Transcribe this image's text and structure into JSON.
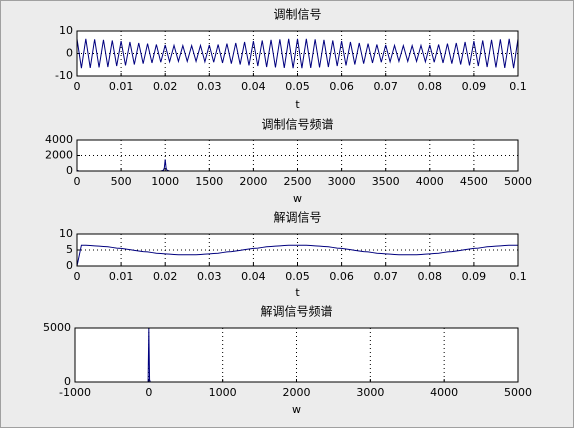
{
  "chart_data": [
    {
      "type": "line",
      "title": "调制信号",
      "xlabel": "t",
      "color": "#00007f",
      "grid": true,
      "xlim": [
        0,
        0.1
      ],
      "xticks": [
        0,
        0.01,
        0.02,
        0.03,
        0.04,
        0.05,
        0.06,
        0.07,
        0.08,
        0.09,
        0.1
      ],
      "ylim": [
        -10,
        10
      ],
      "yticks": [
        -10,
        0,
        10
      ],
      "x": [
        0,
        0.001,
        0.002,
        0.003,
        0.004,
        0.005,
        0.006,
        0.007,
        0.008,
        0.009,
        0.01,
        0.011,
        0.012,
        0.013,
        0.014,
        0.015,
        0.016,
        0.017,
        0.018,
        0.019,
        0.02,
        0.021,
        0.022,
        0.023,
        0.024,
        0.025,
        0.026,
        0.027,
        0.028,
        0.029,
        0.03,
        0.031,
        0.032,
        0.033,
        0.034,
        0.035,
        0.036,
        0.037,
        0.038,
        0.039,
        0.04,
        0.041,
        0.042,
        0.043,
        0.044,
        0.045,
        0.046,
        0.047,
        0.048,
        0.049,
        0.05,
        0.051,
        0.052,
        0.053,
        0.054,
        0.055,
        0.056,
        0.057,
        0.058,
        0.059,
        0.06,
        0.061,
        0.062,
        0.063,
        0.064,
        0.065,
        0.066,
        0.067,
        0.068,
        0.069,
        0.07,
        0.071,
        0.072,
        0.073,
        0.074,
        0.075,
        0.076,
        0.077,
        0.078,
        0.079,
        0.08,
        0.081,
        0.082,
        0.083,
        0.084,
        0.085,
        0.086,
        0.087,
        0.088,
        0.089,
        0.09,
        0.091,
        0.092,
        0.093,
        0.094,
        0.095,
        0.096,
        0.097,
        0.098,
        0.099,
        0.1
      ],
      "values": [
        6.5,
        -6.5,
        6.5,
        -6.4,
        6.3,
        -6.2,
        6.1,
        -6.0,
        5.8,
        -5.6,
        5.5,
        -5.3,
        5.1,
        -4.9,
        4.7,
        -4.5,
        4.4,
        -4.2,
        4.0,
        -3.9,
        3.8,
        -3.7,
        3.6,
        -3.5,
        3.5,
        -3.5,
        3.5,
        -3.5,
        3.6,
        -3.7,
        3.8,
        -3.9,
        4.0,
        -4.2,
        4.4,
        -4.5,
        4.7,
        -4.9,
        5.1,
        -5.3,
        5.5,
        -5.6,
        5.8,
        -6.0,
        6.1,
        -6.2,
        6.3,
        -6.4,
        6.5,
        -6.5,
        6.5,
        -6.5,
        6.5,
        -6.4,
        6.3,
        -6.2,
        6.1,
        -6.0,
        5.8,
        -5.6,
        5.5,
        -5.3,
        5.1,
        -4.9,
        4.7,
        -4.5,
        4.4,
        -4.2,
        4.0,
        -3.9,
        3.8,
        -3.7,
        3.6,
        -3.5,
        3.5,
        -3.5,
        3.5,
        -3.5,
        3.6,
        -3.7,
        3.8,
        -3.9,
        4.0,
        -4.2,
        4.4,
        -4.5,
        4.7,
        -4.9,
        5.1,
        -5.3,
        5.5,
        -5.6,
        5.8,
        -6.0,
        6.1,
        -6.2,
        6.3,
        -6.4,
        6.5,
        -6.5,
        6.5
      ]
    },
    {
      "type": "line",
      "title": "调制信号频谱",
      "xlabel": "w",
      "color": "#00007f",
      "grid": true,
      "xlim": [
        0,
        5000
      ],
      "xticks": [
        0,
        500,
        1000,
        1500,
        2000,
        2500,
        3000,
        3500,
        4000,
        4500,
        5000
      ],
      "ylim": [
        0,
        4000
      ],
      "yticks": [
        0,
        2000,
        4000
      ],
      "x": [
        0,
        10,
        20,
        950,
        980,
        990,
        1000,
        1010,
        1020,
        1050,
        5000
      ],
      "values": [
        20,
        60,
        0,
        0,
        100,
        400,
        1500,
        400,
        100,
        0,
        0
      ]
    },
    {
      "type": "line",
      "title": "解调信号",
      "xlabel": "t",
      "color": "#00007f",
      "grid": true,
      "xlim": [
        0,
        0.1
      ],
      "xticks": [
        0,
        0.01,
        0.02,
        0.03,
        0.04,
        0.05,
        0.06,
        0.07,
        0.08,
        0.09,
        0.1
      ],
      "ylim": [
        0,
        10
      ],
      "yticks": [
        0,
        5,
        10
      ],
      "x": [
        0,
        0.001,
        0.002,
        0.003,
        0.004,
        0.005,
        0.006,
        0.007,
        0.008,
        0.009,
        0.01,
        0.011,
        0.012,
        0.013,
        0.014,
        0.015,
        0.016,
        0.017,
        0.018,
        0.019,
        0.02,
        0.021,
        0.022,
        0.023,
        0.024,
        0.025,
        0.026,
        0.027,
        0.028,
        0.029,
        0.03,
        0.031,
        0.032,
        0.033,
        0.034,
        0.035,
        0.036,
        0.037,
        0.038,
        0.039,
        0.04,
        0.041,
        0.042,
        0.043,
        0.044,
        0.045,
        0.046,
        0.047,
        0.048,
        0.049,
        0.05,
        0.051,
        0.052,
        0.053,
        0.054,
        0.055,
        0.056,
        0.057,
        0.058,
        0.059,
        0.06,
        0.061,
        0.062,
        0.063,
        0.064,
        0.065,
        0.066,
        0.067,
        0.068,
        0.069,
        0.07,
        0.071,
        0.072,
        0.073,
        0.074,
        0.075,
        0.076,
        0.077,
        0.078,
        0.079,
        0.08,
        0.081,
        0.082,
        0.083,
        0.084,
        0.085,
        0.086,
        0.087,
        0.088,
        0.089,
        0.09,
        0.091,
        0.092,
        0.093,
        0.094,
        0.095,
        0.096,
        0.097,
        0.098,
        0.099,
        0.1
      ],
      "values": [
        0,
        6.5,
        6.5,
        6.4,
        6.3,
        6.2,
        6.1,
        6.0,
        5.8,
        5.6,
        5.5,
        5.3,
        5.1,
        4.9,
        4.7,
        4.5,
        4.4,
        4.2,
        4.0,
        3.9,
        3.8,
        3.7,
        3.6,
        3.5,
        3.5,
        3.5,
        3.5,
        3.5,
        3.6,
        3.7,
        3.8,
        3.9,
        4.0,
        4.2,
        4.4,
        4.5,
        4.7,
        4.9,
        5.1,
        5.3,
        5.5,
        5.6,
        5.8,
        6.0,
        6.1,
        6.2,
        6.3,
        6.4,
        6.5,
        6.5,
        6.5,
        6.5,
        6.5,
        6.4,
        6.3,
        6.2,
        6.1,
        6.0,
        5.8,
        5.6,
        5.5,
        5.3,
        5.1,
        4.9,
        4.7,
        4.5,
        4.4,
        4.2,
        4.0,
        3.9,
        3.8,
        3.7,
        3.6,
        3.5,
        3.5,
        3.5,
        3.5,
        3.5,
        3.6,
        3.7,
        3.8,
        3.9,
        4.0,
        4.2,
        4.4,
        4.5,
        4.7,
        4.9,
        5.1,
        5.3,
        5.5,
        5.6,
        5.8,
        6.0,
        6.1,
        6.2,
        6.3,
        6.4,
        6.5,
        6.5,
        6.5
      ]
    },
    {
      "type": "line",
      "title": "解调信号频谱",
      "xlabel": "w",
      "color": "#00007f",
      "grid": true,
      "xlim": [
        -1000,
        5000
      ],
      "xticks": [
        -1000,
        0,
        1000,
        2000,
        3000,
        4000,
        5000
      ],
      "ylim": [
        0,
        5000
      ],
      "yticks": [
        0,
        5000
      ],
      "x": [
        -1000,
        -10,
        0,
        10,
        20,
        5000
      ],
      "values": [
        0,
        0,
        5000,
        200,
        0,
        0
      ]
    }
  ]
}
